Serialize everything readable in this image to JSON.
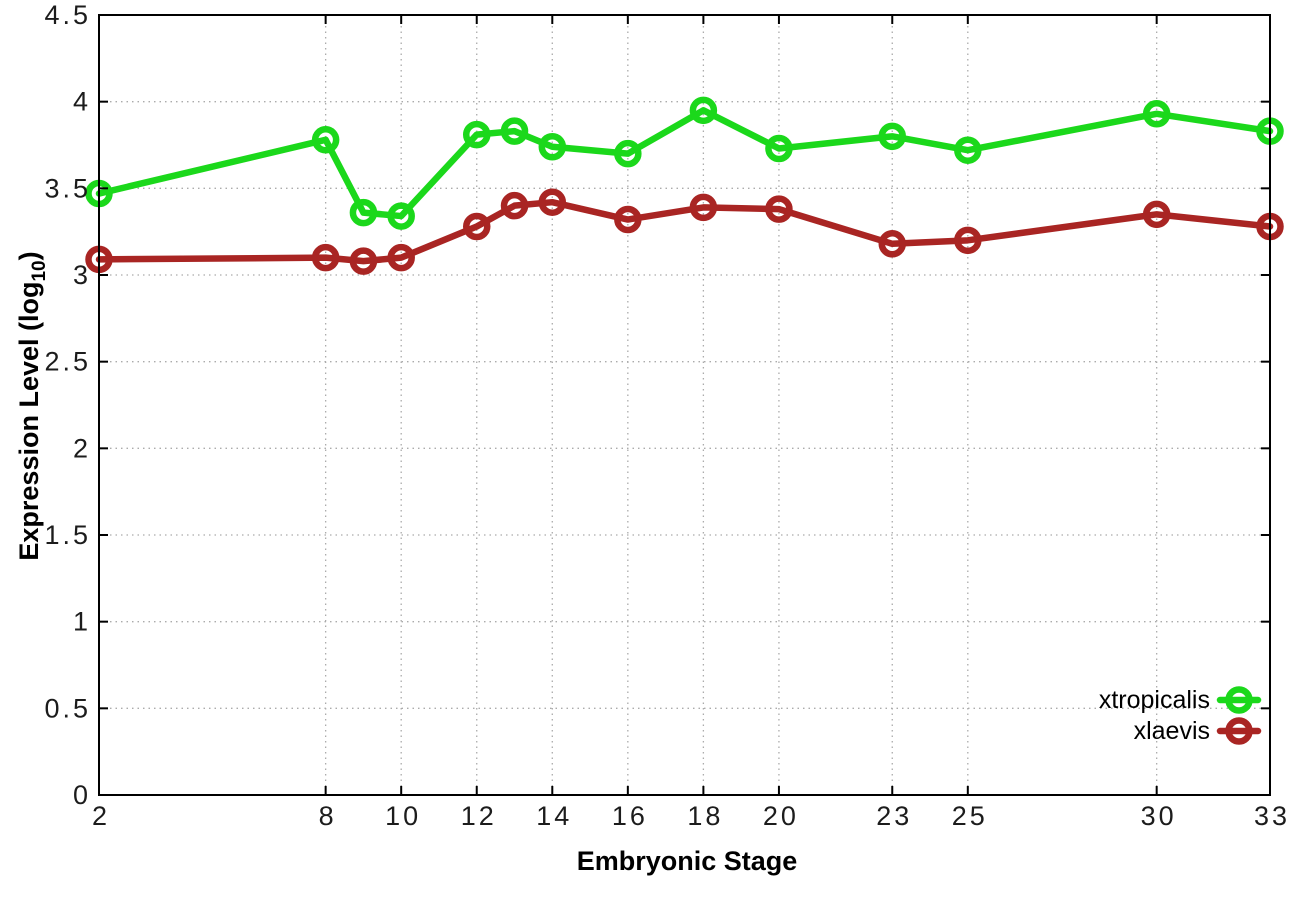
{
  "figure": {
    "background": "#ffffff",
    "ylabel_prefix": "Expression Level (log",
    "ylabel_sub": "10",
    "ylabel_suffix": ")"
  },
  "chart_data": {
    "type": "line",
    "title": "",
    "xlabel": "Embryonic Stage",
    "ylabel": "Expression Level (log10)",
    "xlim": [
      2,
      33
    ],
    "ylim": [
      0,
      4.5
    ],
    "grid": true,
    "grid_style": "dotted",
    "legend_position": "bottom-right",
    "x": [
      2,
      8,
      9,
      10,
      12,
      13,
      14,
      16,
      18,
      20,
      23,
      25,
      30,
      33
    ],
    "xticks": {
      "values": [
        2,
        8,
        10,
        12,
        14,
        16,
        18,
        20,
        23,
        25,
        30,
        33
      ],
      "labels": [
        "2",
        "8",
        "10",
        "12",
        "14",
        "16",
        "18",
        "20",
        "23",
        "25",
        "30",
        "33"
      ]
    },
    "yticks": {
      "values": [
        0,
        0.5,
        1,
        1.5,
        2,
        2.5,
        3,
        3.5,
        4,
        4.5
      ],
      "labels": [
        "0",
        "0.5",
        "1",
        "1.5",
        "2",
        "2.5",
        "3",
        "3.5",
        "4",
        "4.5"
      ]
    },
    "series": [
      {
        "name": "xtropicalis",
        "color": "#1bd81b",
        "marker": "open-circle",
        "values": [
          3.47,
          3.78,
          3.36,
          3.34,
          3.81,
          3.83,
          3.74,
          3.7,
          3.95,
          3.73,
          3.8,
          3.72,
          3.93,
          3.83
        ]
      },
      {
        "name": "xlaevis",
        "color": "#a92523",
        "marker": "open-circle",
        "values": [
          3.09,
          3.1,
          3.08,
          3.1,
          3.28,
          3.4,
          3.42,
          3.32,
          3.39,
          3.38,
          3.18,
          3.2,
          3.35,
          3.28
        ]
      }
    ],
    "colors": {
      "axis": "#000000",
      "grid": "#ababab",
      "tick_label": "#1c1c1c"
    }
  }
}
